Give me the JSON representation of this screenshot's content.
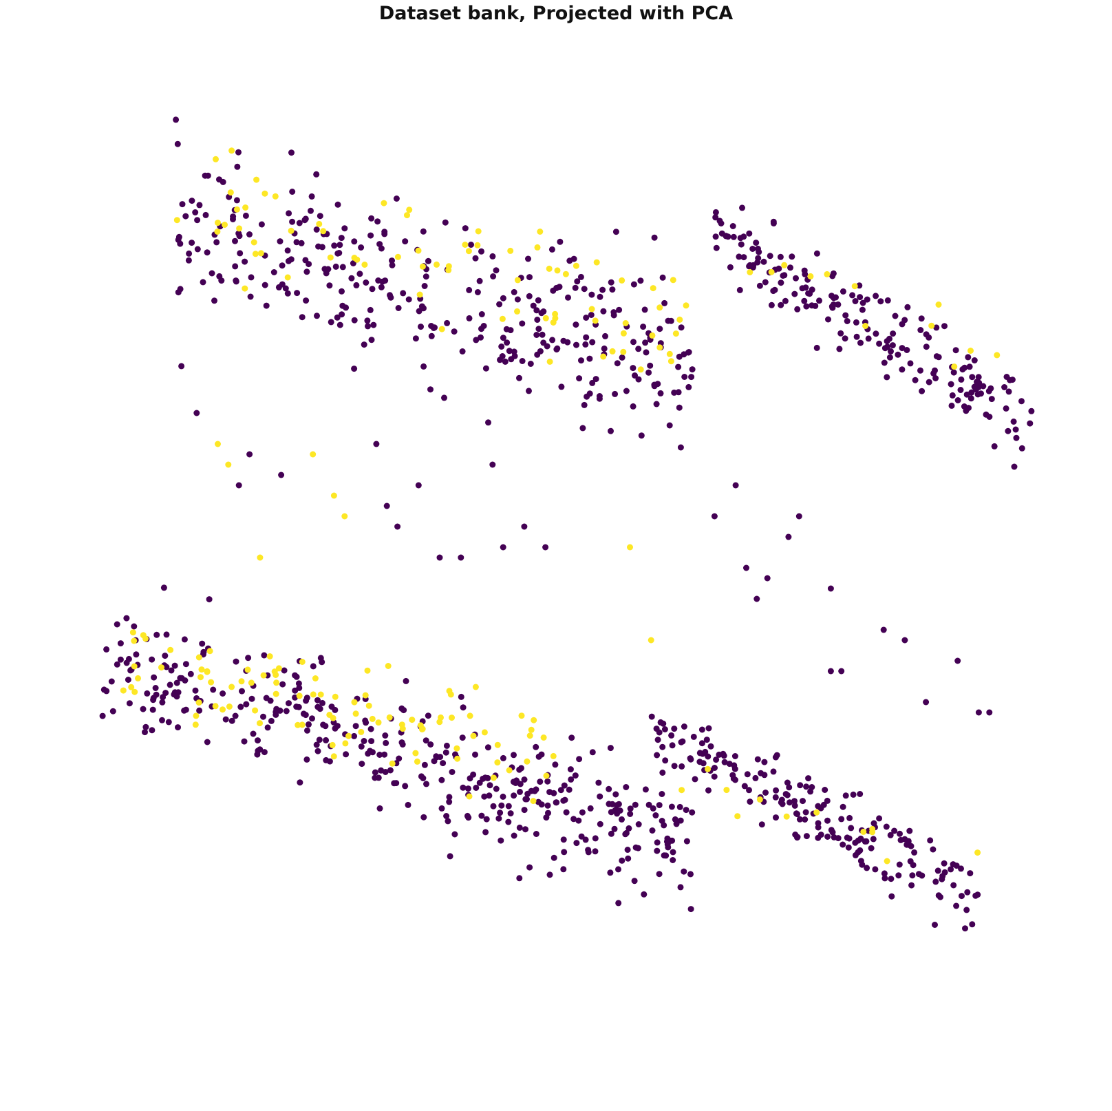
{
  "chart_data": {
    "type": "scatter",
    "title": "Dataset bank, Projected with PCA",
    "xlabel": "",
    "ylabel": "",
    "axes_visible": false,
    "grid": false,
    "legend": "none",
    "xlim": [
      0,
      100
    ],
    "ylim": [
      0,
      100
    ],
    "colors": {
      "class_0": "#440154",
      "class_1": "#fde725"
    },
    "clusters": [
      {
        "name": "",
        "cls": 0,
        "x_range": [
          14,
          63
        ],
        "y_center": [
          82,
          69
        ],
        "spread": 8.5,
        "count": 330
      },
      {
        "name": "",
        "cls": 1,
        "x_range": [
          14,
          63
        ],
        "y_center": [
          84,
          72
        ],
        "spread": 7.0,
        "count": 75
      },
      {
        "name": "",
        "cls": 0,
        "x_range": [
          65,
          95
        ],
        "y_center": [
          81,
          63
        ],
        "spread": 4.5,
        "count": 190
      },
      {
        "name": "",
        "cls": 1,
        "x_range": [
          67,
          95
        ],
        "y_center": [
          80,
          66
        ],
        "spread": 4.0,
        "count": 12
      },
      {
        "name": "",
        "cls": 0,
        "x_range": [
          7,
          63
        ],
        "y_center": [
          40,
          22
        ],
        "spread": 6.5,
        "count": 390
      },
      {
        "name": "",
        "cls": 1,
        "x_range": [
          8,
          50
        ],
        "y_center": [
          40,
          31
        ],
        "spread": 5.0,
        "count": 95
      },
      {
        "name": "",
        "cls": 0,
        "x_range": [
          59,
          90
        ],
        "y_center": [
          33,
          17
        ],
        "spread": 4.0,
        "count": 190
      },
      {
        "name": "",
        "cls": 1,
        "x_range": [
          60,
          90
        ],
        "y_center": [
          31,
          18
        ],
        "spread": 3.5,
        "count": 12
      }
    ],
    "outliers": [
      {
        "x": 16,
        "y": 64,
        "cls": 0
      },
      {
        "x": 18,
        "y": 61,
        "cls": 1
      },
      {
        "x": 19,
        "y": 59,
        "cls": 1
      },
      {
        "x": 20,
        "y": 57,
        "cls": 0
      },
      {
        "x": 21,
        "y": 60,
        "cls": 0
      },
      {
        "x": 22,
        "y": 50,
        "cls": 1
      },
      {
        "x": 24,
        "y": 58,
        "cls": 0
      },
      {
        "x": 27,
        "y": 60,
        "cls": 1
      },
      {
        "x": 29,
        "y": 56,
        "cls": 1
      },
      {
        "x": 30,
        "y": 54,
        "cls": 1
      },
      {
        "x": 33,
        "y": 61,
        "cls": 0
      },
      {
        "x": 34,
        "y": 55,
        "cls": 0
      },
      {
        "x": 35,
        "y": 53,
        "cls": 0
      },
      {
        "x": 37,
        "y": 57,
        "cls": 0
      },
      {
        "x": 39,
        "y": 50,
        "cls": 0
      },
      {
        "x": 41,
        "y": 50,
        "cls": 0
      },
      {
        "x": 44,
        "y": 59,
        "cls": 0
      },
      {
        "x": 45,
        "y": 51,
        "cls": 0
      },
      {
        "x": 47,
        "y": 53,
        "cls": 0
      },
      {
        "x": 49,
        "y": 51,
        "cls": 0
      },
      {
        "x": 57,
        "y": 51,
        "cls": 1
      },
      {
        "x": 59,
        "y": 42,
        "cls": 1
      },
      {
        "x": 65,
        "y": 54,
        "cls": 0
      },
      {
        "x": 67,
        "y": 57,
        "cls": 0
      },
      {
        "x": 68,
        "y": 49,
        "cls": 0
      },
      {
        "x": 69,
        "y": 46,
        "cls": 0
      },
      {
        "x": 70,
        "y": 48,
        "cls": 0
      },
      {
        "x": 72,
        "y": 52,
        "cls": 0
      },
      {
        "x": 73,
        "y": 54,
        "cls": 0
      },
      {
        "x": 76,
        "y": 47,
        "cls": 0
      },
      {
        "x": 76,
        "y": 39,
        "cls": 0
      },
      {
        "x": 77,
        "y": 39,
        "cls": 0
      },
      {
        "x": 81,
        "y": 43,
        "cls": 0
      },
      {
        "x": 83,
        "y": 42,
        "cls": 0
      },
      {
        "x": 85,
        "y": 36,
        "cls": 0
      },
      {
        "x": 88,
        "y": 40,
        "cls": 0
      },
      {
        "x": 90,
        "y": 35,
        "cls": 0
      },
      {
        "x": 91,
        "y": 35,
        "cls": 0
      }
    ]
  }
}
